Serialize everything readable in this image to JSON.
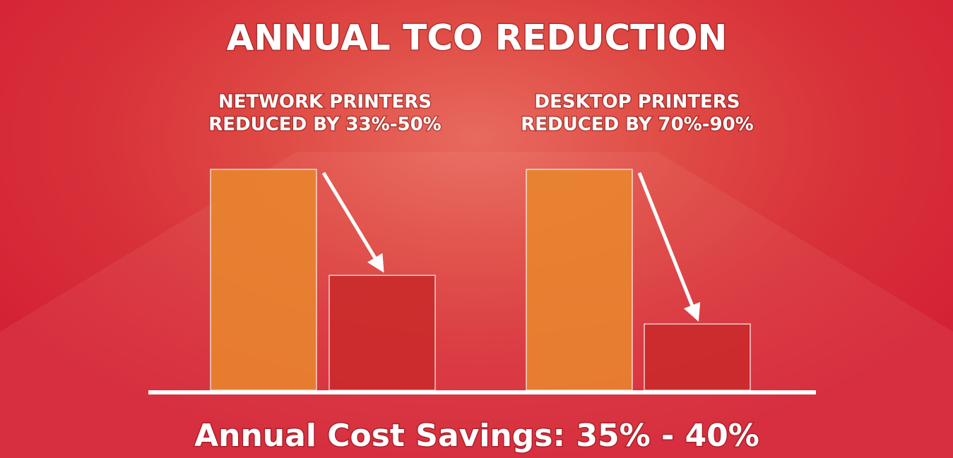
{
  "chart_data": {
    "type": "bar",
    "title": "ANNUAL TCO REDUCTION",
    "groups": [
      {
        "label": [
          "NETWORK PRINTERS",
          "REDUCED BY 33%-50%"
        ],
        "values": [
          100,
          52
        ]
      },
      {
        "label": [
          "DESKTOP PRINTERS",
          "REDUCED BY 70%-90%"
        ],
        "values": [
          100,
          30
        ]
      }
    ],
    "colors": [
      "#e8862e",
      "#c92a2a"
    ],
    "ylim": [
      0,
      100
    ],
    "footer": "Annual Cost Savings: 35% - 40%"
  }
}
